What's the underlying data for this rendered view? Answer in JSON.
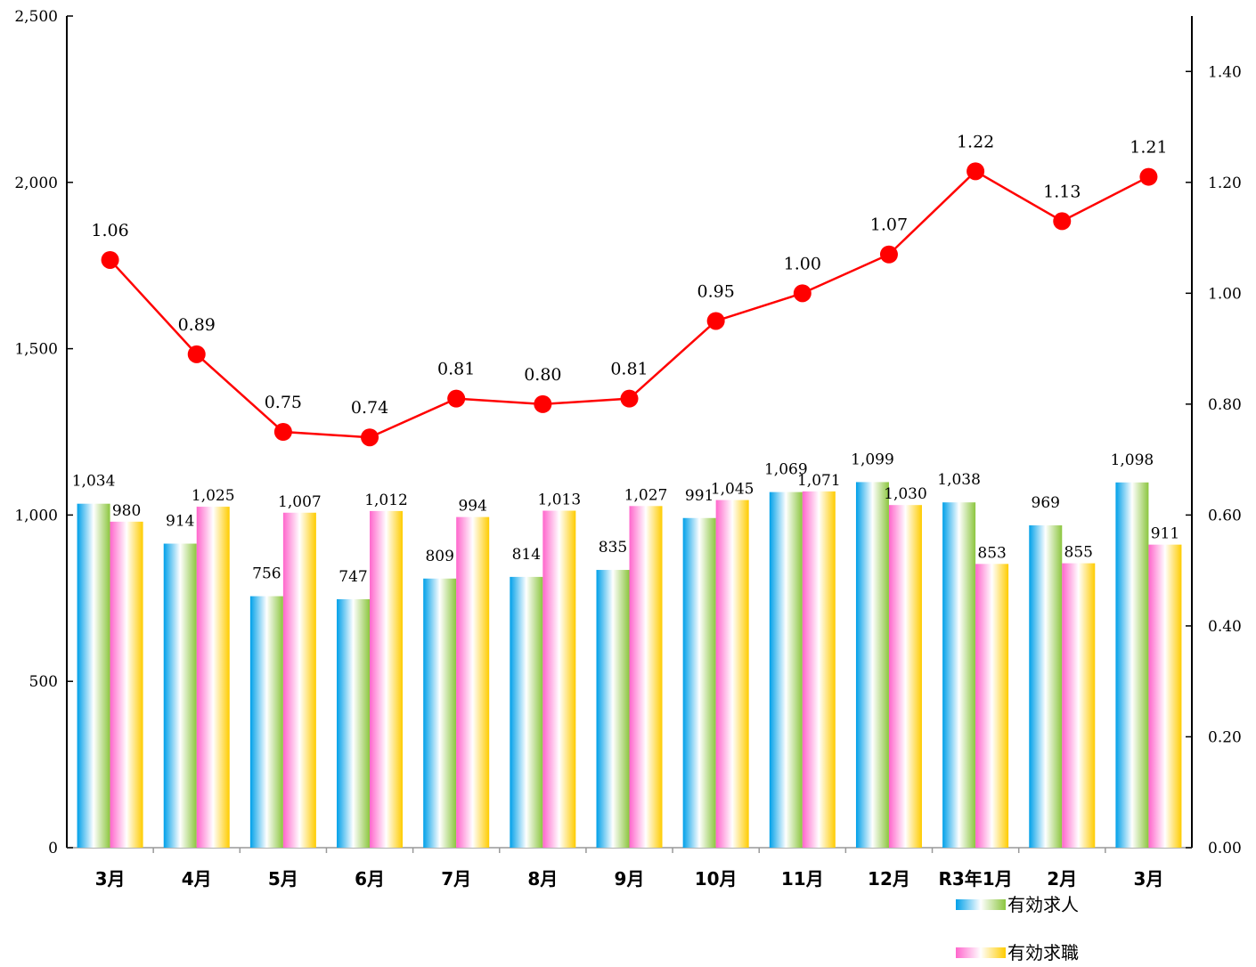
{
  "chart_data": {
    "type": "bar",
    "categories": [
      "3月",
      "4月",
      "5月",
      "6月",
      "7月",
      "8月",
      "9月",
      "10月",
      "11月",
      "12月",
      "R3年1月",
      "2月",
      "3月"
    ],
    "series": [
      {
        "name": "有効求人",
        "type": "bar",
        "axis": "left",
        "values": [
          1034,
          914,
          756,
          747,
          809,
          814,
          835,
          991,
          1069,
          1099,
          1038,
          969,
          1098
        ],
        "labels": [
          "1,034",
          "914",
          "756",
          "747",
          "809",
          "814",
          "835",
          "991",
          "1,069",
          "1,099",
          "1,038",
          "969",
          "1,098"
        ]
      },
      {
        "name": "有効求職",
        "type": "bar",
        "axis": "left",
        "values": [
          980,
          1025,
          1007,
          1012,
          994,
          1013,
          1027,
          1045,
          1071,
          1030,
          853,
          855,
          911
        ],
        "labels": [
          "980",
          "1,025",
          "1,007",
          "1,012",
          "994",
          "1,013",
          "1,027",
          "1,045",
          "1,071",
          "1,030",
          "853",
          "855",
          "911"
        ]
      },
      {
        "type": "line",
        "axis": "right",
        "values": [
          1.06,
          0.89,
          0.75,
          0.74,
          0.81,
          0.8,
          0.81,
          0.95,
          1.0,
          1.07,
          1.22,
          1.13,
          1.21
        ],
        "labels": [
          "1.06",
          "0.89",
          "0.75",
          "0.74",
          "0.81",
          "0.80",
          "0.81",
          "0.95",
          "1.00",
          "1.07",
          "1.22",
          "1.13",
          "1.21"
        ],
        "color": "#ff0000"
      }
    ],
    "y_left": {
      "range": [
        0,
        2500
      ],
      "ticks": [
        0,
        500,
        1000,
        1500,
        2000,
        2500
      ],
      "tick_labels": [
        "0",
        "500",
        "1,000",
        "1,500",
        "2,000",
        "2,500"
      ]
    },
    "y_right": {
      "range": [
        0,
        1.5
      ],
      "ticks": [
        0,
        0.2,
        0.4,
        0.6,
        0.8,
        1.0,
        1.2,
        1.4
      ],
      "tick_labels": [
        "0.00",
        "0.20",
        "0.40",
        "0.60",
        "0.80",
        "1.00",
        "1.20",
        "1.40"
      ]
    },
    "grid": false,
    "legend": {
      "position": "bottom-right",
      "entries": [
        "有効求人",
        "有効求職"
      ]
    },
    "colors": {
      "series1_gradient": [
        "#00a0e9",
        "#ffffff",
        "#8cc63f"
      ],
      "series2_gradient": [
        "#ff66cc",
        "#ffffff",
        "#ffcc00"
      ],
      "line": "#ff0000"
    }
  }
}
